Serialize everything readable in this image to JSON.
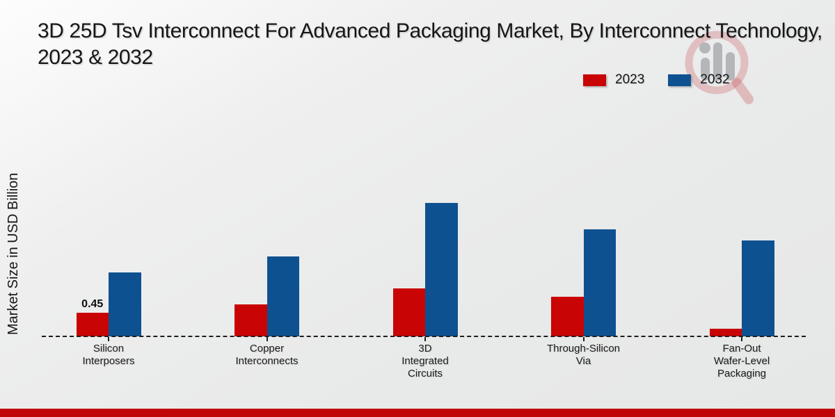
{
  "title": "3D 25D Tsv Interconnect For Advanced Packaging Market, By Interconnect Technology, 2023 & 2032",
  "y_axis_label": "Market Size in USD Billion",
  "legend": {
    "items": [
      {
        "label": "2023",
        "color": "#c90404"
      },
      {
        "label": "2032",
        "color": "#0e5190"
      }
    ]
  },
  "watermark": {
    "name": "market-research-magnifier-logo"
  },
  "footer": {
    "color": "#c00606"
  },
  "chart_data": {
    "type": "bar",
    "title": "3D 25D Tsv Interconnect For Advanced Packaging Market, By Interconnect Technology, 2023 & 2032",
    "xlabel": "",
    "ylabel": "Market Size in USD Billion",
    "ylim": [
      0,
      3.2
    ],
    "grid": false,
    "legend_position": "top-right",
    "baseline_style": "dashed",
    "categories": [
      "Silicon Interposers",
      "Copper Interconnects",
      "3D Integrated Circuits",
      "Through-Silicon Via",
      "Fan-Out Wafer-Level Packaging"
    ],
    "tick_label_lines": [
      [
        "Silicon",
        "Interposers"
      ],
      [
        "Copper",
        "Interconnects"
      ],
      [
        "3D",
        "Integrated",
        "Circuits"
      ],
      [
        "Through-Silicon",
        "Via"
      ],
      [
        "Fan-Out",
        "Wafer-Level",
        "Packaging"
      ]
    ],
    "series": [
      {
        "name": "2023",
        "color": "#c90404",
        "values": [
          0.45,
          0.61,
          0.91,
          0.75,
          0.15
        ]
      },
      {
        "name": "2032",
        "color": "#0e5190",
        "values": [
          1.22,
          1.52,
          2.54,
          2.04,
          1.83
        ]
      }
    ],
    "annotations": [
      {
        "series": "2023",
        "category": "Silicon Interposers",
        "text": "0.45"
      }
    ]
  }
}
